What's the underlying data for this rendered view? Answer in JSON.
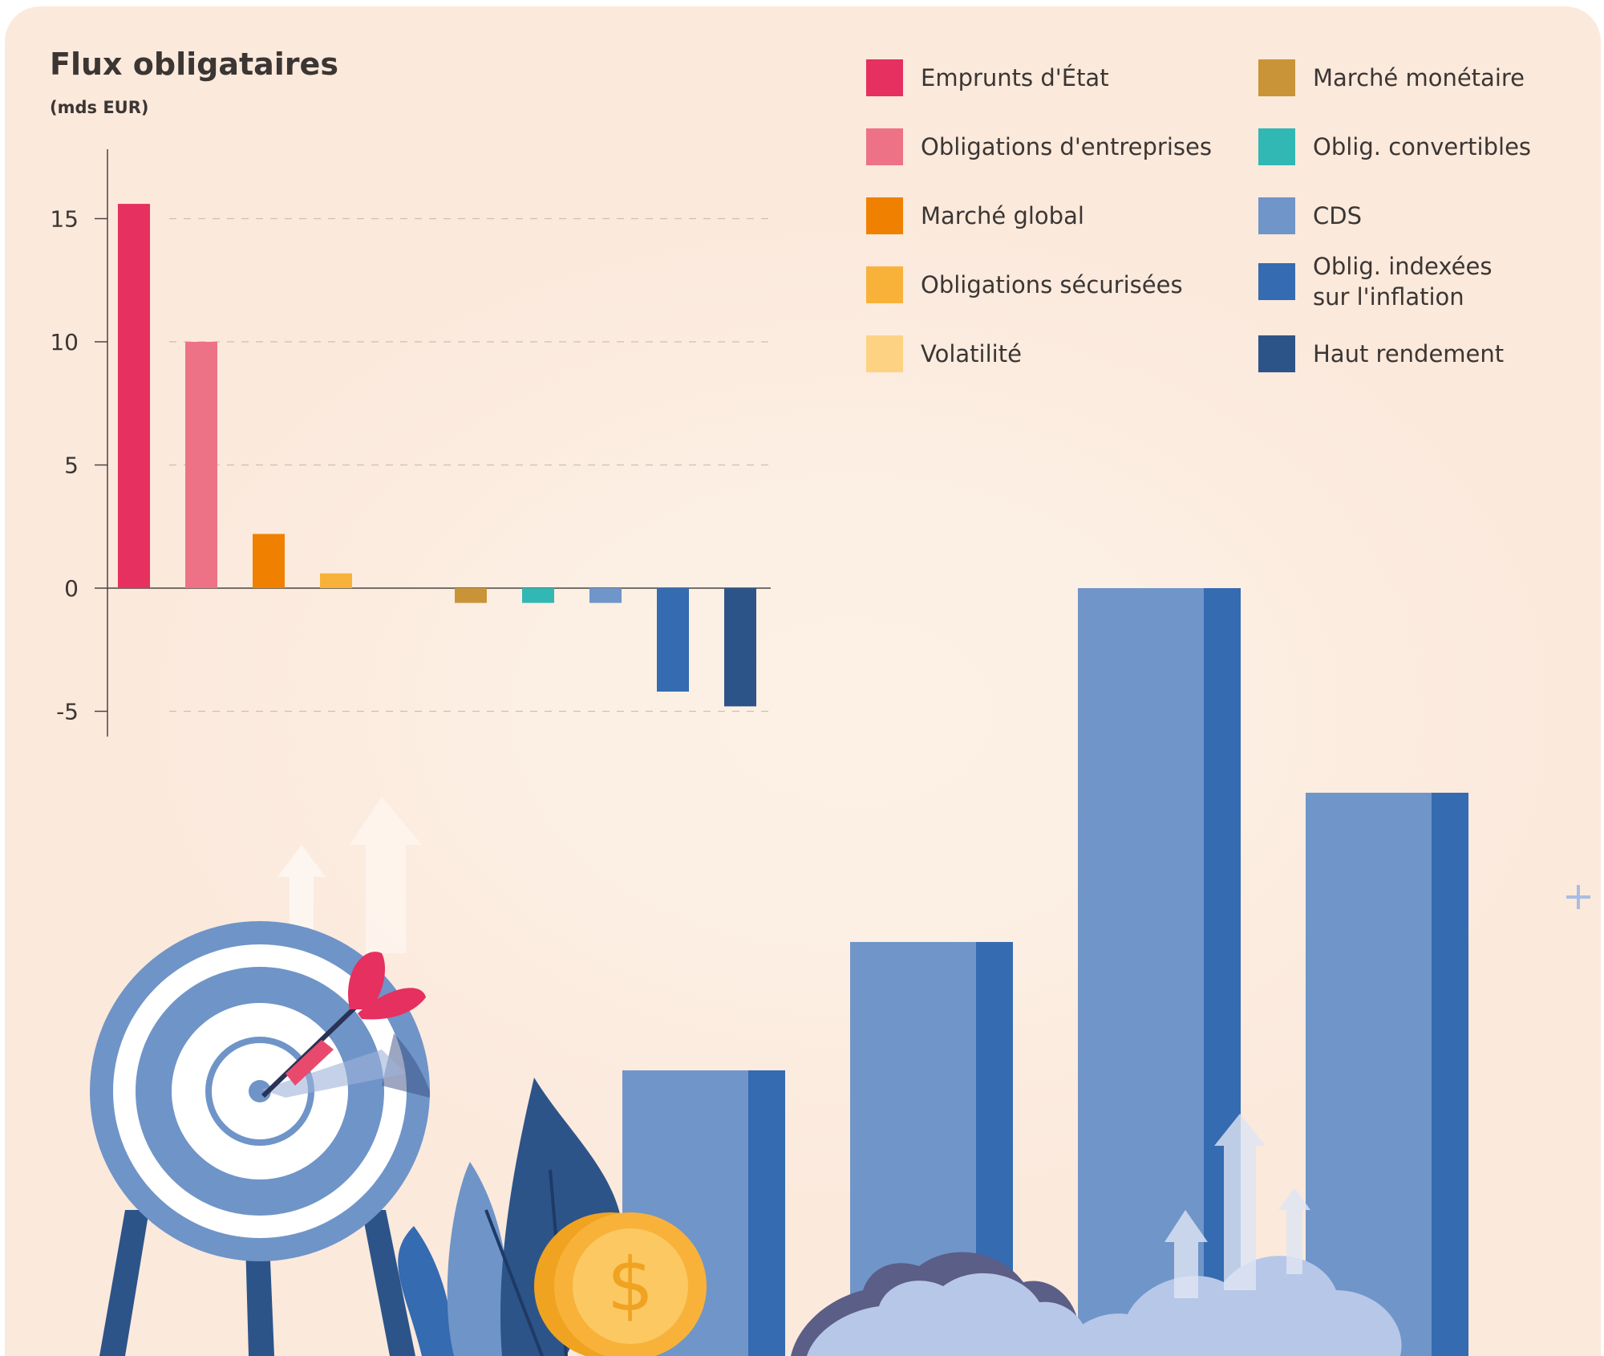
{
  "chart_data": {
    "type": "bar",
    "title": "Flux obligataires",
    "subtitle": "(mds EUR)",
    "categories": [
      "Emprunts d'État",
      "Obligations d'entreprises",
      "Marché global",
      "Obligations sécurisées",
      "Volatilité",
      "Marché monétaire",
      "Oblig. convertibles",
      "CDS",
      "Oblig. indexées\nsur l'inflation",
      "Haut rendement"
    ],
    "values": [
      15.6,
      10.0,
      2.2,
      0.6,
      0.0,
      -0.6,
      -0.6,
      -0.6,
      -4.2,
      -4.8
    ],
    "colors": [
      "#e53060",
      "#ee7285",
      "#f08000",
      "#f8b23a",
      "#fdd282",
      "#c99438",
      "#31b7b4",
      "#7095c9",
      "#356bb0",
      "#2c5489"
    ],
    "ylim": [
      -6,
      18
    ],
    "yticks": [
      15,
      10,
      5,
      0,
      -5
    ],
    "ytick_labels": [
      "15",
      "10",
      "5",
      "0",
      "-5"
    ],
    "grid": true,
    "legend_position": "top-right",
    "xlabel": "",
    "ylabel": ""
  }
}
